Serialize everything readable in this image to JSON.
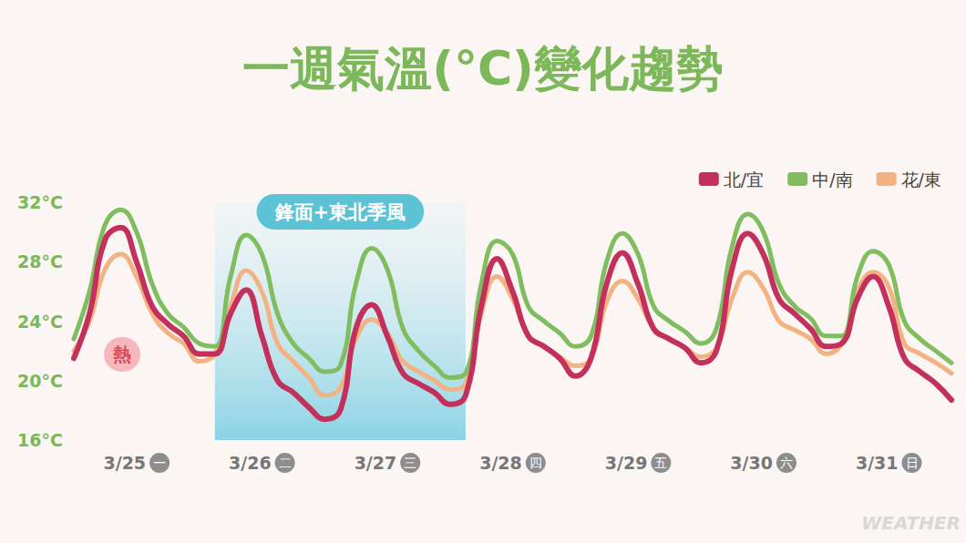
{
  "chart_data": {
    "type": "line",
    "title": "一週氣溫(°C)變化趨勢",
    "categories": [
      null,
      null,
      null,
      null,
      "3/25 一",
      null,
      null,
      null,
      null,
      null,
      null,
      null,
      "3/26 二",
      null,
      null,
      null,
      null,
      null,
      null,
      null,
      "3/27 三",
      null,
      null,
      null,
      null,
      null,
      null,
      null,
      "3/28 四",
      null,
      null,
      null,
      null,
      null,
      null,
      null,
      "3/29 五",
      null,
      null,
      null,
      null,
      null,
      null,
      null,
      "3/30 六",
      null,
      null,
      null,
      null,
      null,
      null,
      null,
      "3/31 日",
      null,
      null,
      null,
      null
    ],
    "series": [
      {
        "name": "北/宜",
        "color": "#c2305b",
        "values": [
          21.5,
          24.5,
          29.5,
          30.3,
          28.0,
          25.0,
          23.8,
          23.0,
          21.8,
          21.8,
          24.5,
          26.1,
          23.0,
          20.0,
          19.2,
          18.2,
          17.4,
          18.0,
          23.5,
          25.1,
          23.0,
          20.5,
          19.8,
          19.2,
          18.4,
          19.0,
          25.0,
          28.2,
          26.0,
          23.0,
          22.3,
          21.5,
          20.3,
          21.5,
          26.5,
          28.6,
          26.5,
          23.5,
          22.8,
          22.2,
          21.2,
          22.0,
          27.5,
          29.9,
          28.5,
          25.5,
          24.5,
          23.5,
          22.3,
          22.5,
          25.5,
          27.0,
          25.0,
          21.5,
          20.6,
          19.8,
          18.7
        ]
      },
      {
        "name": "中/南",
        "color": "#80bd5f",
        "values": [
          22.8,
          26.0,
          30.5,
          31.5,
          30.0,
          26.5,
          24.5,
          23.6,
          22.5,
          22.3,
          27.0,
          29.8,
          28.5,
          24.5,
          22.5,
          21.5,
          20.6,
          21.0,
          26.5,
          28.9,
          27.5,
          23.5,
          22.0,
          21.0,
          20.2,
          20.5,
          26.5,
          29.4,
          28.5,
          25.0,
          24.0,
          23.2,
          22.3,
          23.0,
          28.0,
          29.9,
          28.5,
          25.0,
          24.0,
          23.3,
          22.5,
          23.5,
          29.0,
          31.2,
          30.0,
          26.5,
          25.0,
          24.2,
          23.0,
          23.0,
          27.0,
          28.7,
          27.8,
          24.0,
          22.8,
          22.0,
          21.2
        ]
      },
      {
        "name": "花/東",
        "color": "#f3b282",
        "values": [
          22.0,
          24.0,
          27.5,
          28.5,
          27.0,
          24.5,
          23.2,
          22.5,
          21.3,
          21.8,
          25.0,
          27.4,
          26.0,
          22.5,
          21.3,
          20.2,
          19.0,
          19.5,
          22.8,
          24.1,
          23.2,
          21.3,
          20.6,
          20.0,
          19.4,
          19.8,
          24.5,
          27.0,
          25.5,
          23.0,
          22.3,
          21.6,
          21.0,
          21.5,
          25.3,
          26.7,
          25.5,
          23.5,
          22.8,
          22.2,
          21.6,
          22.2,
          25.5,
          27.3,
          26.2,
          24.0,
          23.4,
          22.8,
          21.8,
          22.5,
          26.0,
          27.3,
          26.3,
          22.5,
          21.8,
          21.2,
          20.5
        ]
      }
    ],
    "ylim": [
      16,
      32
    ],
    "yticks": [
      {
        "value": 16,
        "label": "16°C"
      },
      {
        "value": 20,
        "label": "20°C"
      },
      {
        "value": 24,
        "label": "24°C"
      },
      {
        "value": 28,
        "label": "28°C"
      },
      {
        "value": 32,
        "label": "32°C"
      }
    ],
    "grid": false,
    "legend": "upper right",
    "annotations": [
      {
        "kind": "band",
        "text": "鋒面+東北季風",
        "x_from": 9,
        "x_to": 25
      },
      {
        "kind": "badge",
        "text": "熱"
      },
      {
        "kind": "watermark",
        "text": "WEATHER"
      }
    ]
  }
}
